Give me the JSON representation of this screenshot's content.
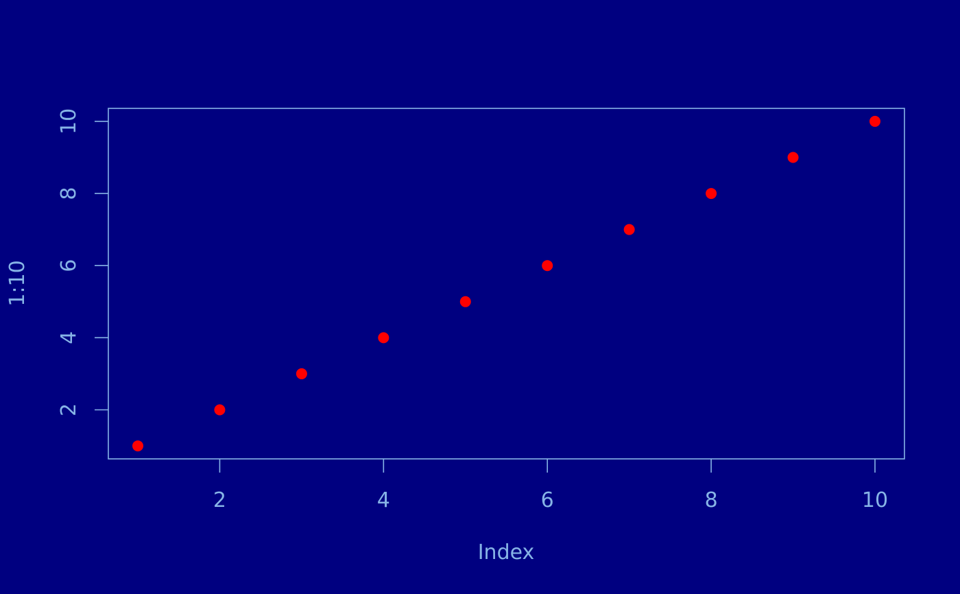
{
  "colors": {
    "background": "#000080",
    "foreground": "#87b4e6",
    "points": "#ff0000"
  },
  "chart_data": {
    "type": "scatter",
    "title": "",
    "xlabel": "Index",
    "ylabel": "1:10",
    "x": [
      1,
      2,
      3,
      4,
      5,
      6,
      7,
      8,
      9,
      10
    ],
    "y": [
      1,
      2,
      3,
      4,
      5,
      6,
      7,
      8,
      9,
      10
    ],
    "xlim": [
      0.64,
      10.36
    ],
    "ylim": [
      0.64,
      10.36
    ],
    "xticks": [
      2,
      4,
      6,
      8,
      10
    ],
    "yticks": [
      2,
      4,
      6,
      8,
      10
    ],
    "grid": false,
    "legend": "none",
    "marker": "filled-circle"
  }
}
